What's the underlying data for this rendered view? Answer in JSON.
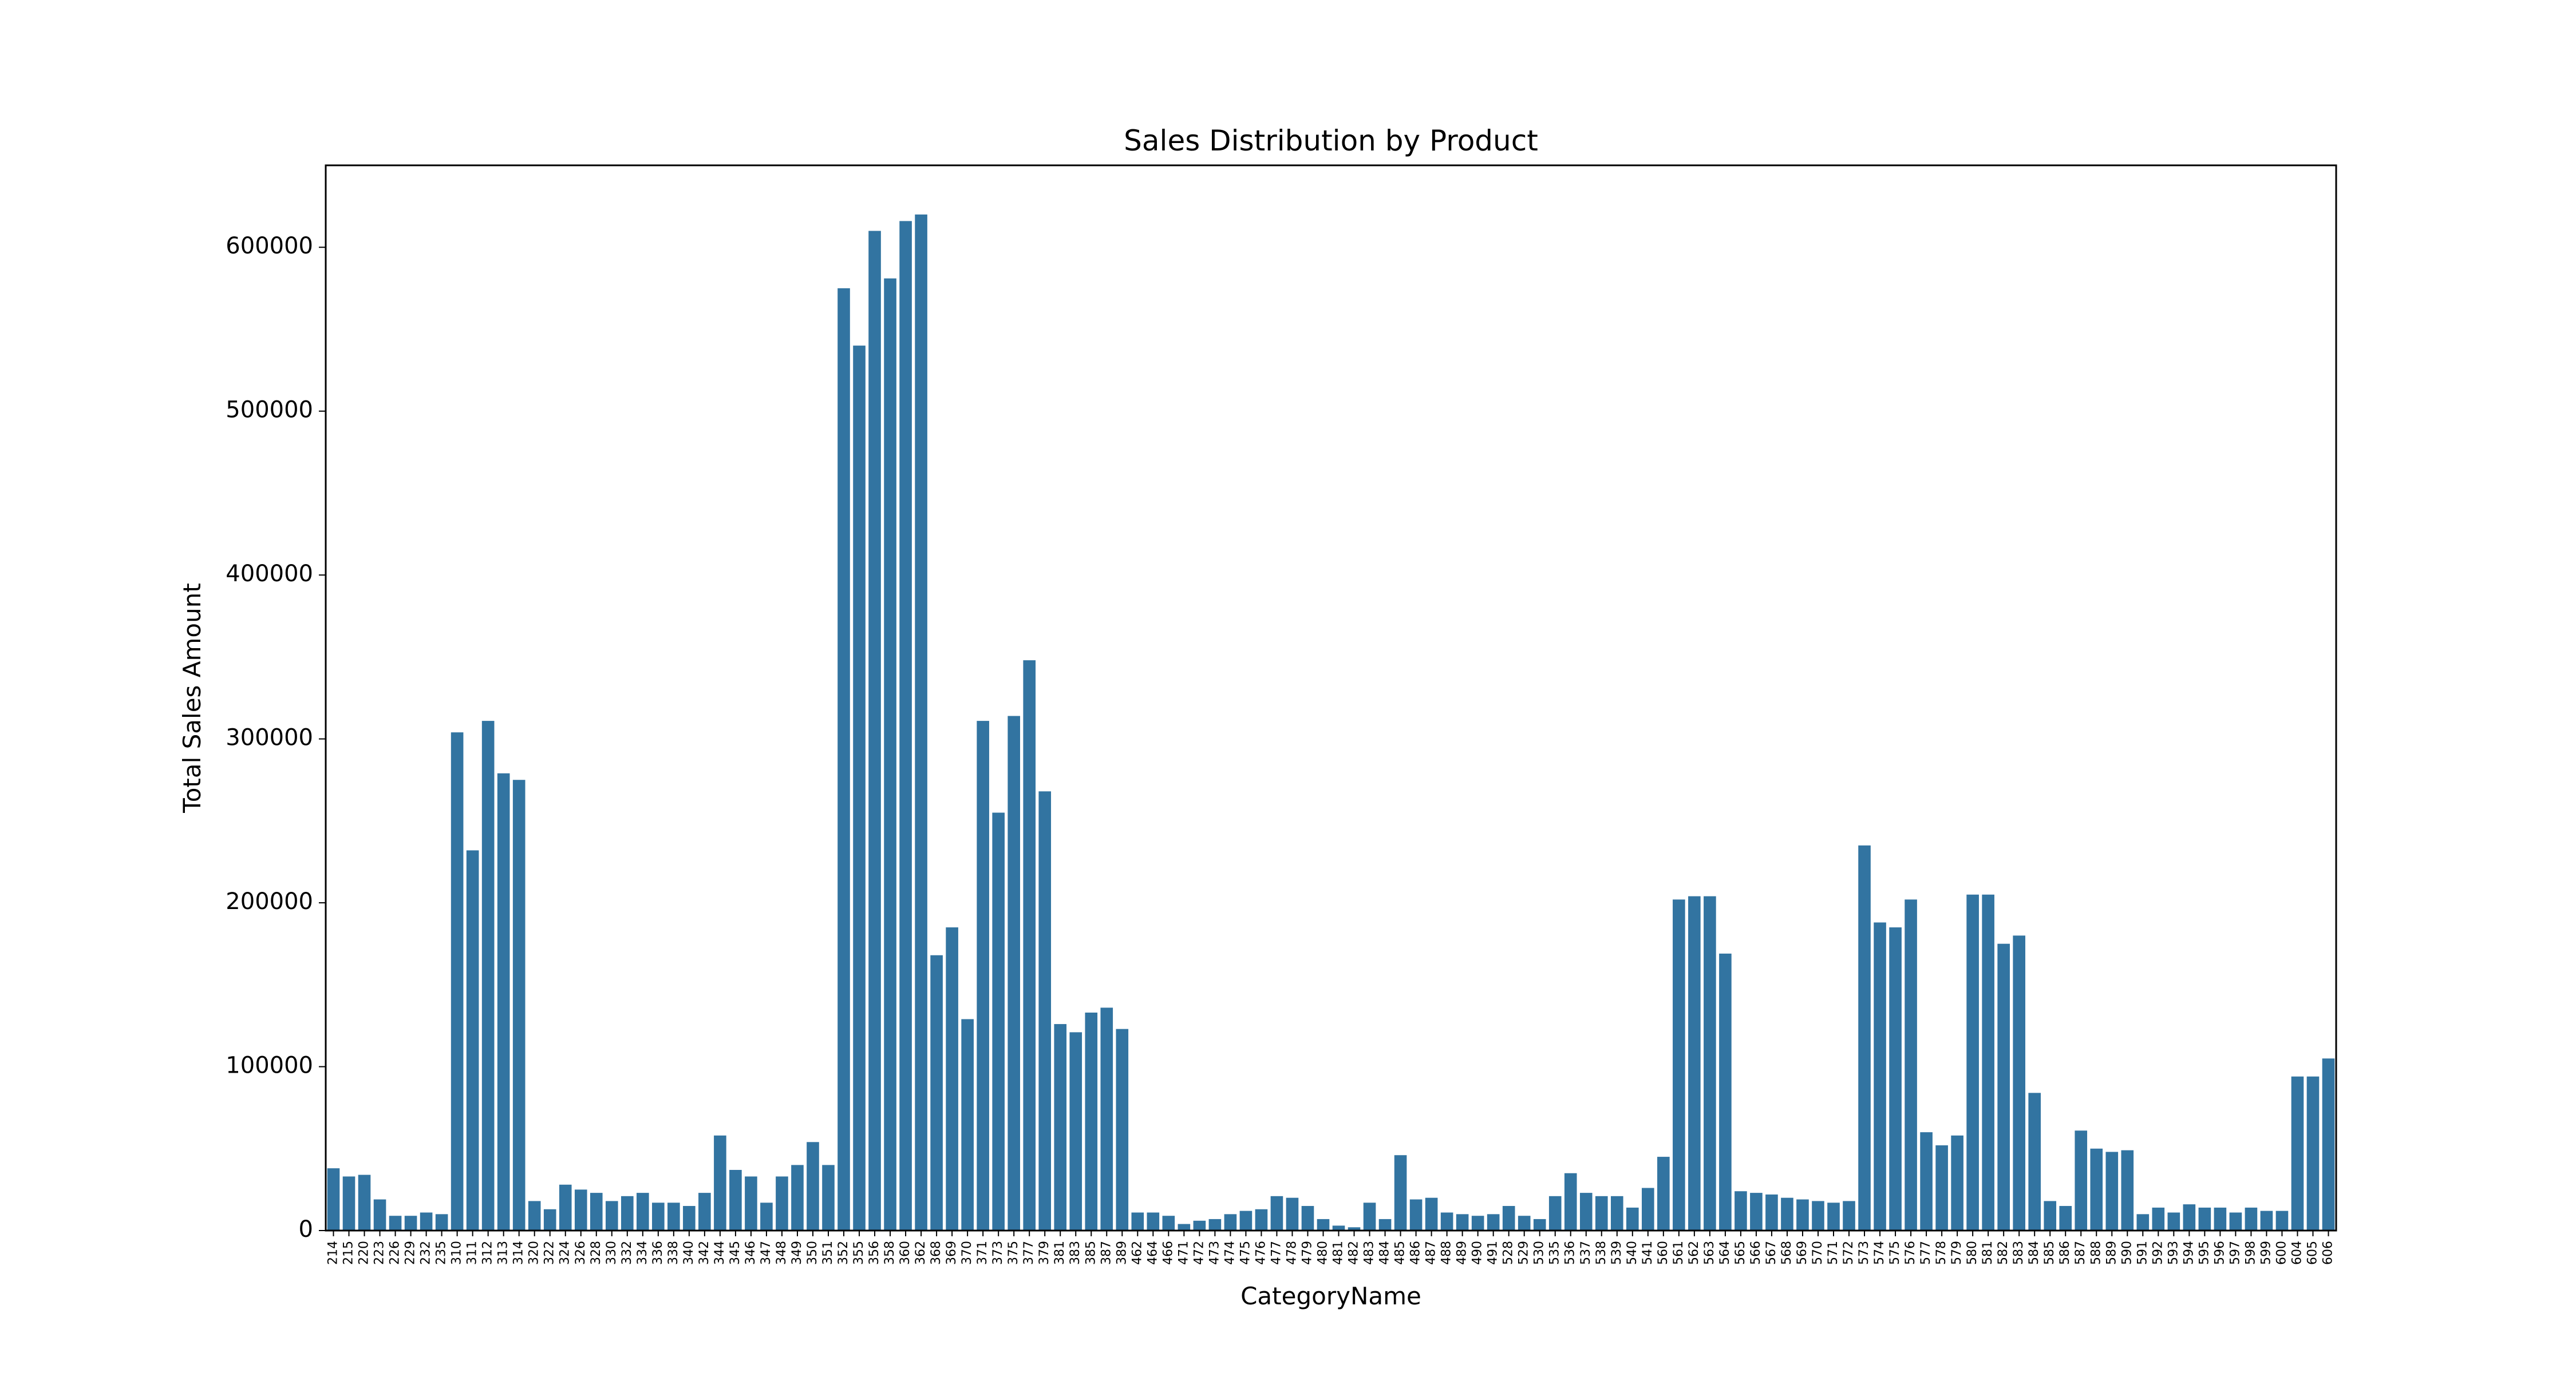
{
  "chart_data": {
    "type": "bar",
    "title": "Sales Distribution by Product",
    "xlabel": "CategoryName",
    "ylabel": "Total Sales Amount",
    "ylim": [
      0,
      650000
    ],
    "yticks": [
      0,
      100000,
      200000,
      300000,
      400000,
      500000,
      600000
    ],
    "grid": false,
    "legend": "none",
    "bar_color": "#3274A1",
    "categories": [
      "214",
      "215",
      "220",
      "223",
      "226",
      "229",
      "232",
      "235",
      "310",
      "311",
      "312",
      "313",
      "314",
      "320",
      "322",
      "324",
      "326",
      "328",
      "330",
      "332",
      "334",
      "336",
      "338",
      "340",
      "342",
      "344",
      "345",
      "346",
      "347",
      "348",
      "349",
      "350",
      "351",
      "352",
      "355",
      "356",
      "358",
      "360",
      "362",
      "368",
      "369",
      "370",
      "371",
      "373",
      "375",
      "377",
      "379",
      "381",
      "383",
      "385",
      "387",
      "389",
      "462",
      "464",
      "466",
      "471",
      "472",
      "473",
      "474",
      "475",
      "476",
      "477",
      "478",
      "479",
      "480",
      "481",
      "482",
      "483",
      "484",
      "485",
      "486",
      "487",
      "488",
      "489",
      "490",
      "491",
      "528",
      "529",
      "530",
      "535",
      "536",
      "537",
      "538",
      "539",
      "540",
      "541",
      "560",
      "561",
      "562",
      "563",
      "564",
      "565",
      "566",
      "567",
      "568",
      "569",
      "570",
      "571",
      "572",
      "573",
      "574",
      "575",
      "576",
      "577",
      "578",
      "579",
      "580",
      "581",
      "582",
      "583",
      "584",
      "585",
      "586",
      "587",
      "588",
      "589",
      "590",
      "591",
      "592",
      "593",
      "594",
      "595",
      "596",
      "597",
      "598",
      "599",
      "600",
      "604",
      "605",
      "606"
    ],
    "values": [
      38000,
      33000,
      34000,
      19000,
      9000,
      9000,
      11000,
      10000,
      304000,
      232000,
      311000,
      279000,
      275000,
      18000,
      13000,
      28000,
      25000,
      23000,
      18000,
      21000,
      23000,
      17000,
      17000,
      15000,
      23000,
      58000,
      37000,
      33000,
      17000,
      33000,
      40000,
      54000,
      40000,
      575000,
      540000,
      610000,
      581000,
      616000,
      620000,
      168000,
      185000,
      129000,
      311000,
      255000,
      314000,
      348000,
      268000,
      126000,
      121000,
      133000,
      136000,
      123000,
      11000,
      11000,
      9000,
      4000,
      6000,
      7000,
      10000,
      12000,
      13000,
      21000,
      20000,
      15000,
      7000,
      3000,
      2000,
      17000,
      7000,
      46000,
      19000,
      20000,
      11000,
      10000,
      9000,
      10000,
      15000,
      9000,
      7000,
      21000,
      35000,
      23000,
      21000,
      21000,
      14000,
      26000,
      45000,
      202000,
      204000,
      204000,
      169000,
      24000,
      23000,
      22000,
      20000,
      19000,
      18000,
      17000,
      18000,
      235000,
      188000,
      185000,
      202000,
      60000,
      52000,
      58000,
      205000,
      205000,
      175000,
      180000,
      84000,
      18000,
      15000,
      61000,
      50000,
      48000,
      49000,
      10000,
      14000,
      11000,
      16000,
      14000,
      14000,
      11000,
      14000,
      12000,
      12000,
      94000,
      94000,
      105000
    ]
  }
}
